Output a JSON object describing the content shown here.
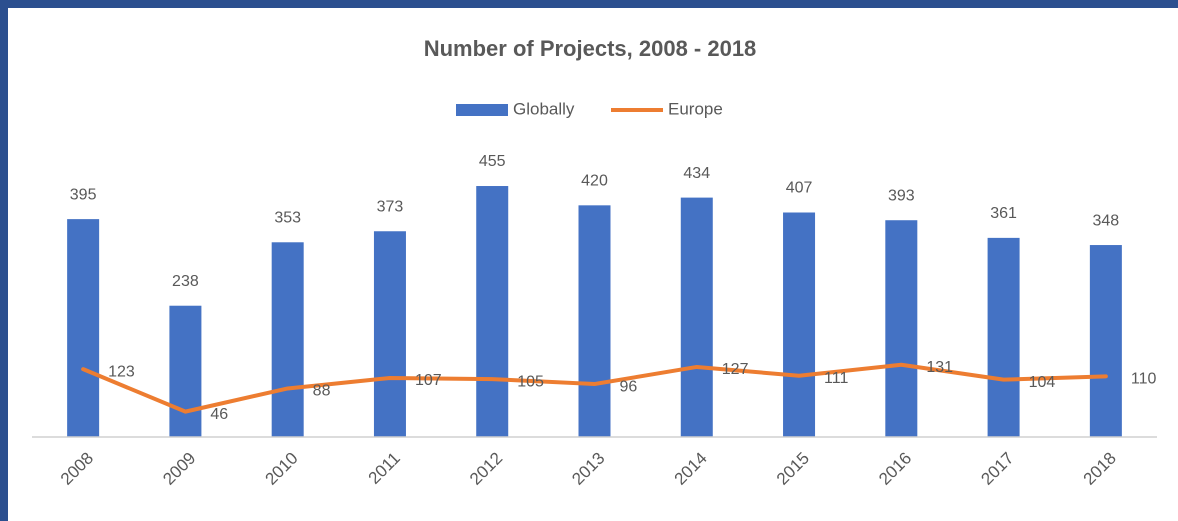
{
  "chart_data": {
    "type": "bar-line",
    "title": "Number of Projects, 2008 - 2018",
    "categories": [
      "2008",
      "2009",
      "2010",
      "2011",
      "2012",
      "2013",
      "2014",
      "2015",
      "2016",
      "2017",
      "2018"
    ],
    "series": [
      {
        "name": "Globally",
        "type": "bar",
        "color": "#4472c4",
        "values": [
          395,
          238,
          353,
          373,
          455,
          420,
          434,
          407,
          393,
          361,
          348
        ]
      },
      {
        "name": "Europe",
        "type": "line",
        "color": "#ed7d31",
        "values": [
          123,
          46,
          88,
          107,
          105,
          96,
          127,
          111,
          131,
          104,
          110
        ]
      }
    ],
    "ylim": [
      0,
      500
    ],
    "legend": "top",
    "grid": false
  }
}
